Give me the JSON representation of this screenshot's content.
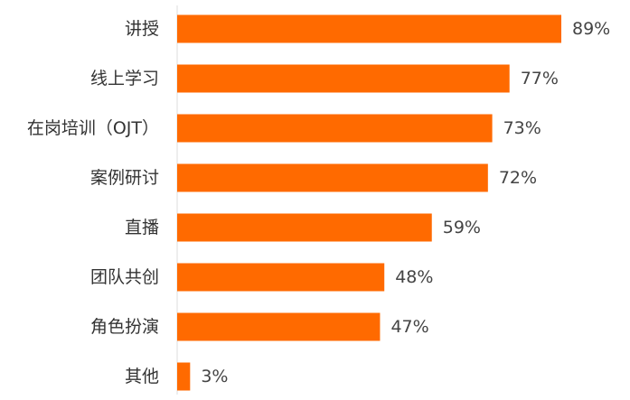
{
  "chart_data": {
    "type": "bar",
    "orientation": "horizontal",
    "categories": [
      "讲授",
      "线上学习",
      "在岗培训（OJT）",
      "案例研讨",
      "直播",
      "团队共创",
      "角色扮演",
      "其他"
    ],
    "values": [
      89,
      77,
      73,
      72,
      59,
      48,
      47,
      3
    ],
    "value_labels": [
      "89%",
      "77%",
      "73%",
      "72%",
      "59%",
      "48%",
      "47%",
      "3%"
    ],
    "unit": "%",
    "xlim": [
      0,
      100
    ],
    "grid": false,
    "legend": "none",
    "bar_color": "#ff6a00"
  }
}
